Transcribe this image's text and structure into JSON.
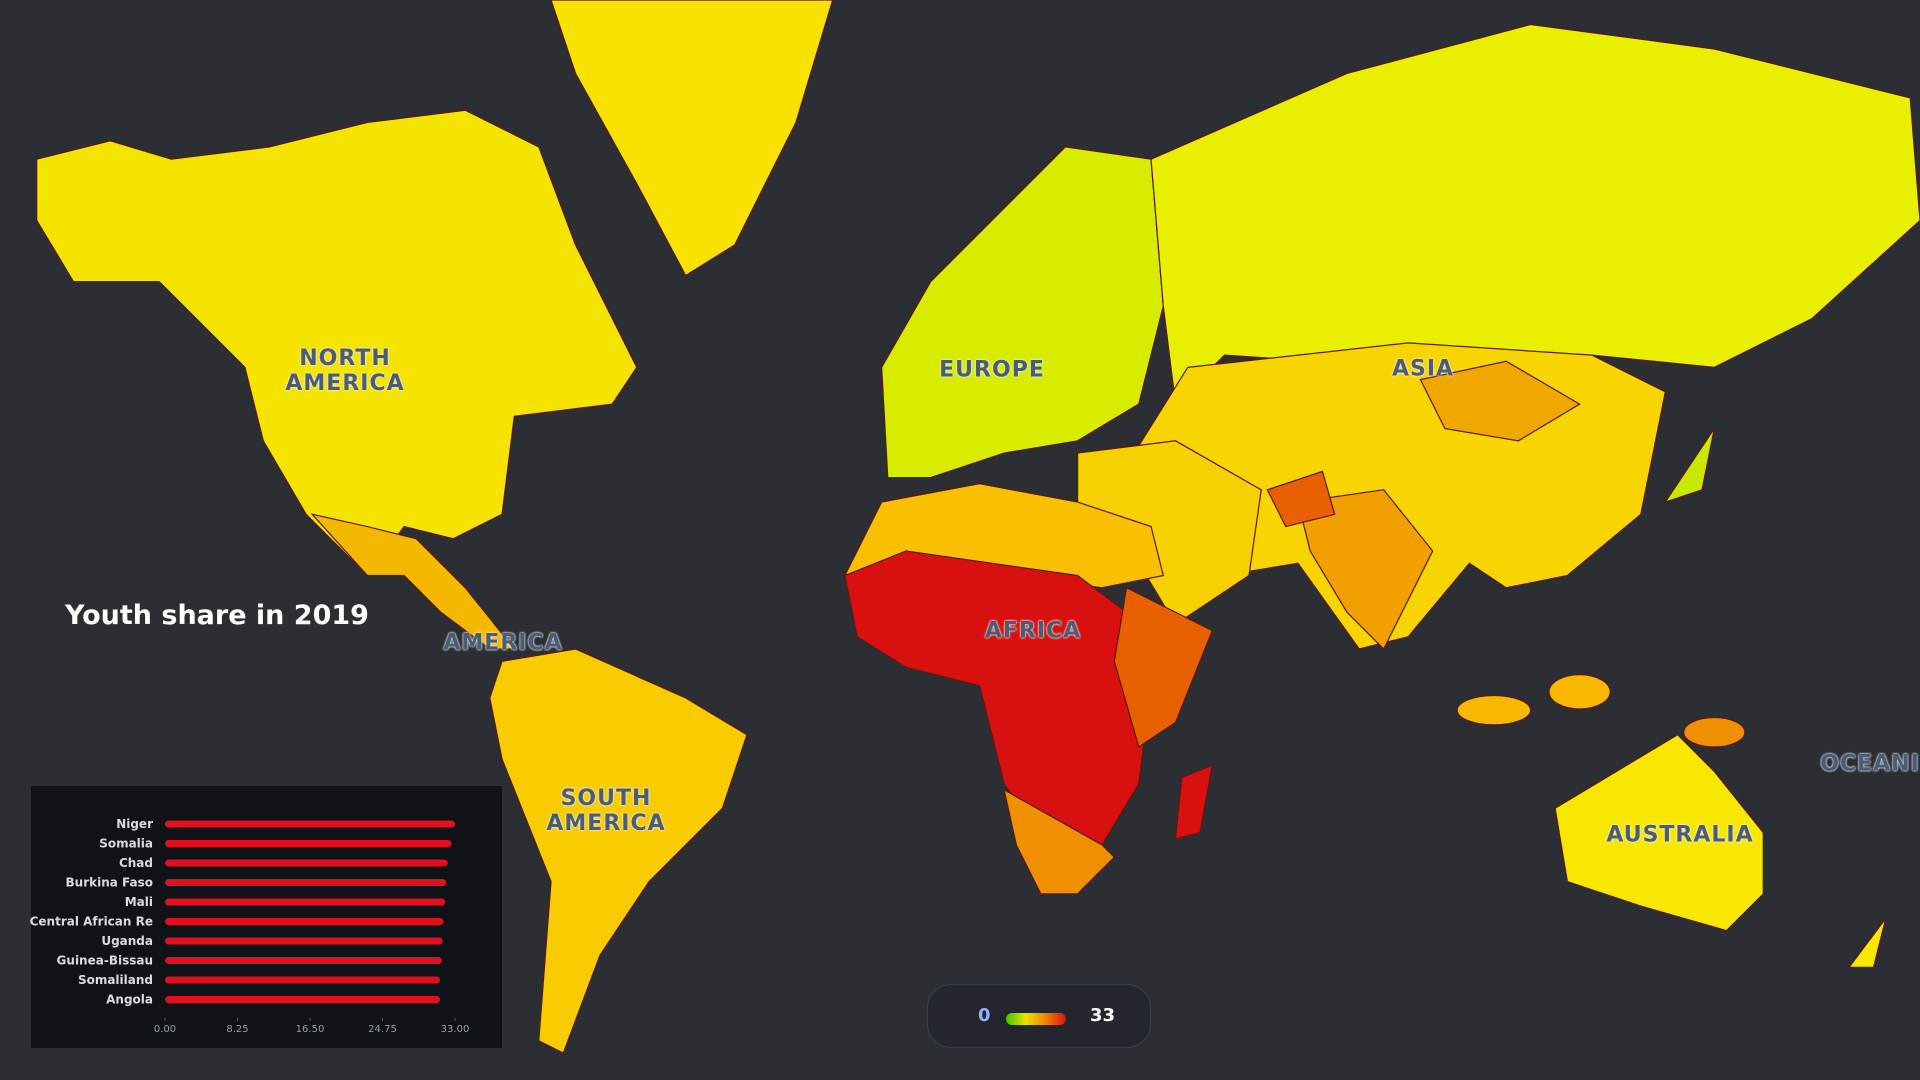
{
  "title": "Youth share in 2019",
  "map_labels": [
    "NORTH AMERICA",
    "EUROPE",
    "ASIA",
    "AFRICA",
    "AMERICA",
    "SOUTH AMERICA",
    "AUSTRALIA",
    "OCEANI"
  ],
  "legend": {
    "min": 0,
    "max": 33
  },
  "chart_data": {
    "type": "bar",
    "orientation": "horizontal",
    "categories": [
      "Niger",
      "Somalia",
      "Chad",
      "Burkina Faso",
      "Mali",
      "Central African Re",
      "Uganda",
      "Guinea-Bissau",
      "Somaliland",
      "Angola"
    ],
    "values": [
      33.0,
      32.6,
      32.2,
      32.0,
      31.9,
      31.7,
      31.6,
      31.5,
      31.3,
      31.3
    ],
    "color": "#e0101e",
    "xlim": [
      0,
      33
    ],
    "xticks": [
      {
        "value": 0,
        "label": "0.00"
      },
      {
        "value": 8.25,
        "label": "8.25"
      },
      {
        "value": 16.5,
        "label": "16.50"
      },
      {
        "value": 24.75,
        "label": "24.75"
      },
      {
        "value": 33,
        "label": "33.00"
      }
    ]
  }
}
